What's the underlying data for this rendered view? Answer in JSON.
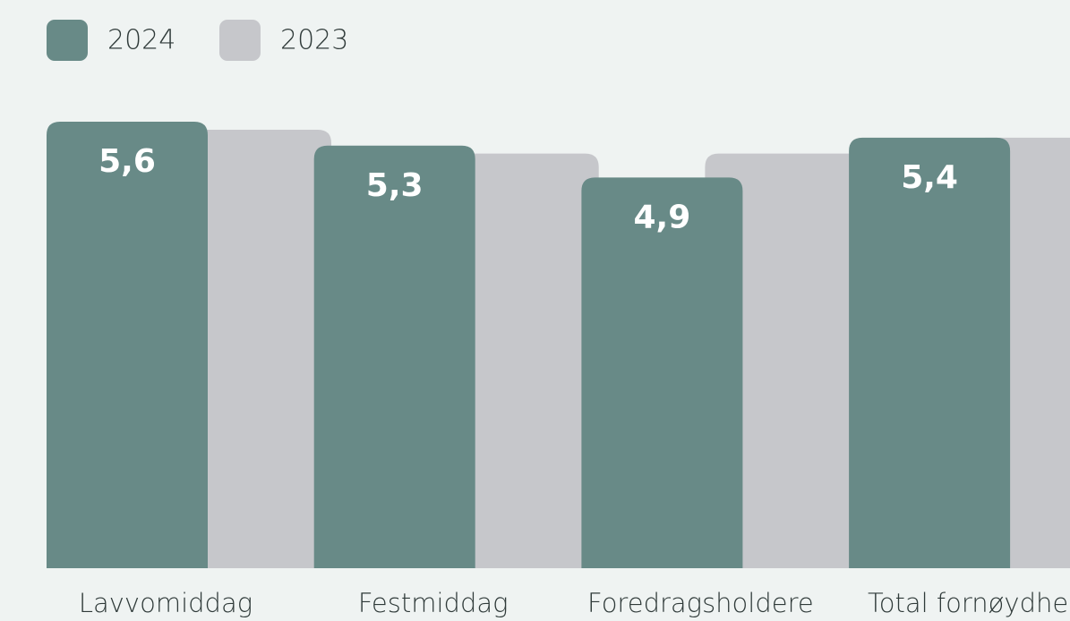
{
  "chart_data": {
    "type": "bar",
    "categories": [
      "Lavvomiddag",
      "Festmiddag",
      "Foredragsholdere",
      "Total fornøydhe"
    ],
    "series": [
      {
        "name": "2024",
        "color": "#688a87",
        "values": [
          5.6,
          5.3,
          4.9,
          5.4
        ],
        "value_labels": [
          "5,6",
          "5,3",
          "4,9",
          "5,4"
        ]
      },
      {
        "name": "2023",
        "color": "#c6c7cb",
        "values": [
          5.5,
          5.2,
          5.2,
          5.4
        ]
      }
    ],
    "ylim": [
      0,
      6
    ]
  }
}
